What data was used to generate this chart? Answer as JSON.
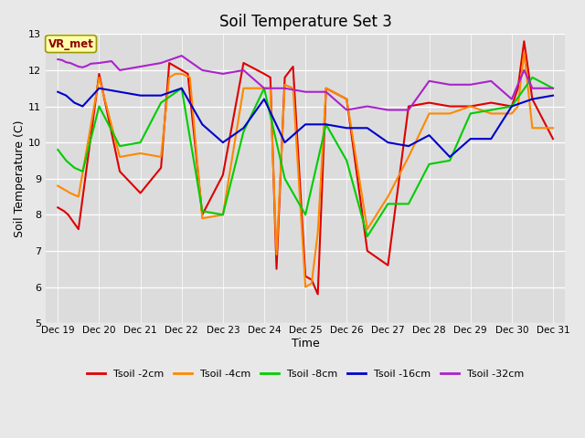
{
  "title": "Soil Temperature Set 3",
  "xlabel": "Time",
  "ylabel": "Soil Temperature (C)",
  "ylim": [
    5.0,
    13.0
  ],
  "yticks": [
    5.0,
    6.0,
    7.0,
    8.0,
    9.0,
    10.0,
    11.0,
    12.0,
    13.0
  ],
  "fig_bg": "#e8e8e8",
  "plot_bg": "#dcdcdc",
  "annotation_label": "VR_met",
  "x_labels": [
    "Dec 19",
    "Dec 20",
    "Dec 21",
    "Dec 22",
    "Dec 23",
    "Dec 24",
    "Dec 25",
    "Dec 26",
    "Dec 27",
    "Dec 28",
    "Dec 29",
    "Dec 30",
    "Dec 31"
  ],
  "series": {
    "Tsoil -2cm": {
      "color": "#dd0000",
      "x": [
        0,
        0.15,
        0.25,
        0.5,
        1.0,
        1.5,
        2.0,
        2.5,
        2.7,
        2.85,
        3.0,
        3.15,
        3.5,
        4.0,
        4.5,
        5.0,
        5.15,
        5.3,
        5.5,
        5.7,
        6.0,
        6.15,
        6.3,
        6.5,
        7.0,
        7.5,
        8.0,
        8.5,
        9.0,
        9.5,
        10.0,
        10.5,
        11.0,
        11.15,
        11.3,
        11.5,
        12.0
      ],
      "y": [
        8.2,
        8.1,
        8.0,
        7.6,
        11.9,
        9.2,
        8.6,
        9.3,
        12.2,
        12.1,
        12.0,
        11.9,
        8.0,
        9.1,
        12.2,
        11.9,
        11.8,
        6.5,
        11.8,
        12.1,
        6.3,
        6.2,
        5.8,
        11.5,
        11.2,
        7.0,
        6.6,
        11.0,
        11.1,
        11.0,
        11.0,
        11.1,
        11.0,
        11.5,
        12.8,
        11.2,
        10.1
      ]
    },
    "Tsoil -4cm": {
      "color": "#ff8800",
      "x": [
        0,
        0.15,
        0.3,
        0.5,
        1.0,
        1.5,
        2.0,
        2.5,
        2.7,
        2.85,
        3.0,
        3.2,
        3.5,
        4.0,
        4.5,
        5.0,
        5.15,
        5.3,
        5.5,
        5.7,
        6.0,
        6.15,
        6.3,
        6.5,
        7.0,
        7.5,
        8.0,
        8.5,
        9.0,
        9.5,
        10.0,
        10.5,
        11.0,
        11.15,
        11.3,
        11.5,
        12.0
      ],
      "y": [
        8.8,
        8.7,
        8.6,
        8.5,
        11.8,
        9.6,
        9.7,
        9.6,
        11.8,
        11.9,
        11.9,
        11.8,
        7.9,
        8.0,
        11.5,
        11.5,
        11.5,
        6.9,
        11.6,
        11.5,
        6.0,
        6.1,
        7.5,
        11.5,
        11.2,
        7.6,
        8.5,
        9.6,
        10.8,
        10.8,
        11.0,
        10.8,
        10.8,
        11.0,
        12.5,
        10.4,
        10.4
      ]
    },
    "Tsoil -8cm": {
      "color": "#00cc00",
      "x": [
        0,
        0.2,
        0.4,
        0.6,
        1.0,
        1.5,
        2.0,
        2.5,
        3.0,
        3.5,
        4.0,
        4.5,
        5.0,
        5.5,
        6.0,
        6.5,
        7.0,
        7.5,
        8.0,
        8.5,
        9.0,
        9.5,
        10.0,
        10.5,
        11.0,
        11.5,
        12.0
      ],
      "y": [
        9.8,
        9.5,
        9.3,
        9.2,
        11.0,
        9.9,
        10.0,
        11.1,
        11.5,
        8.1,
        8.0,
        10.3,
        11.5,
        9.0,
        8.0,
        10.5,
        9.5,
        7.4,
        8.3,
        8.3,
        9.4,
        9.5,
        10.8,
        10.9,
        11.0,
        11.8,
        11.5
      ]
    },
    "Tsoil -16cm": {
      "color": "#0000cc",
      "x": [
        0,
        0.2,
        0.4,
        0.6,
        1.0,
        1.5,
        2.0,
        2.5,
        3.0,
        3.5,
        4.0,
        4.5,
        5.0,
        5.5,
        6.0,
        6.5,
        7.0,
        7.5,
        8.0,
        8.5,
        9.0,
        9.5,
        10.0,
        10.5,
        11.0,
        11.5,
        12.0
      ],
      "y": [
        11.4,
        11.3,
        11.1,
        11.0,
        11.5,
        11.4,
        11.3,
        11.3,
        11.5,
        10.5,
        10.0,
        10.4,
        11.2,
        10.0,
        10.5,
        10.5,
        10.4,
        10.4,
        10.0,
        9.9,
        10.2,
        9.6,
        10.1,
        10.1,
        11.0,
        11.2,
        11.3
      ]
    },
    "Tsoil -32cm": {
      "color": "#aa22cc",
      "x": [
        0,
        0.1,
        0.2,
        0.3,
        0.4,
        0.5,
        0.6,
        0.7,
        0.8,
        1.0,
        1.3,
        1.5,
        2.0,
        2.5,
        3.0,
        3.5,
        4.0,
        4.5,
        5.0,
        5.5,
        6.0,
        6.5,
        7.0,
        7.5,
        8.0,
        8.5,
        9.0,
        9.5,
        10.0,
        10.5,
        11.0,
        11.3,
        11.5,
        12.0
      ],
      "y": [
        12.3,
        12.28,
        12.22,
        12.2,
        12.15,
        12.1,
        12.08,
        12.12,
        12.18,
        12.2,
        12.25,
        12.0,
        12.1,
        12.2,
        12.4,
        12.0,
        11.9,
        12.0,
        11.5,
        11.5,
        11.4,
        11.4,
        10.9,
        11.0,
        10.9,
        10.9,
        11.7,
        11.6,
        11.6,
        11.7,
        11.2,
        12.0,
        11.5,
        11.5
      ]
    }
  }
}
